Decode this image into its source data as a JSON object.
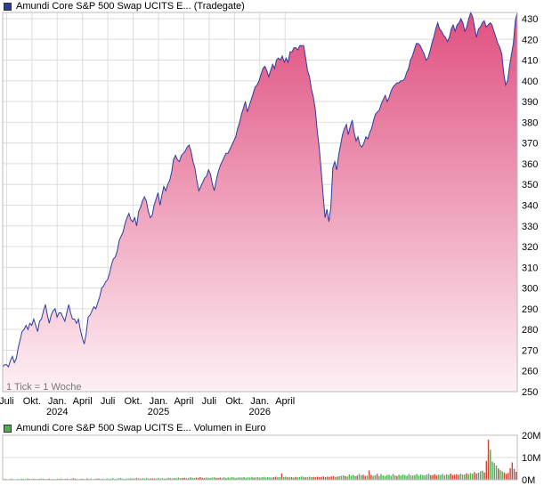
{
  "chart_data": [
    {
      "type": "area",
      "title": "Amundi Core S&P 500 Swap UCITS E... (Tradegate)",
      "note": "1 Tick = 1 Woche",
      "ylim": [
        250,
        433
      ],
      "yticks": [
        250,
        260,
        270,
        280,
        290,
        300,
        310,
        320,
        330,
        340,
        350,
        360,
        370,
        380,
        390,
        400,
        410,
        420,
        430
      ],
      "xticks": [
        {
          "label": "Juli",
          "year": ""
        },
        {
          "label": "Okt.",
          "year": ""
        },
        {
          "label": "Jan.",
          "year": "2024"
        },
        {
          "label": "April",
          "year": ""
        },
        {
          "label": "Juli",
          "year": ""
        },
        {
          "label": "Okt.",
          "year": ""
        },
        {
          "label": "Jan.",
          "year": "2025"
        },
        {
          "label": "April",
          "year": ""
        },
        {
          "label": "Juli",
          "year": ""
        },
        {
          "label": "Okt.",
          "year": ""
        },
        {
          "label": "Jan.",
          "year": "2026"
        },
        {
          "label": "April",
          "year": ""
        }
      ],
      "grid": true,
      "colors": {
        "line": "#2b3d9a",
        "fill_top": "#e05080",
        "fill_bottom": "#fdf0f5",
        "grid": "#dddddd"
      },
      "series": [
        {
          "name": "",
          "values": [
            262,
            263,
            263,
            262,
            265,
            267,
            264,
            266,
            271,
            275,
            279,
            280,
            282,
            280,
            283,
            282,
            285,
            282,
            279,
            284,
            285,
            289,
            292,
            287,
            283,
            287,
            289,
            290,
            286,
            288,
            288,
            286,
            284,
            288,
            292,
            288,
            285,
            285,
            283,
            285,
            280,
            276,
            273,
            278,
            286,
            287,
            289,
            291,
            290,
            293,
            296,
            300,
            301,
            303,
            304,
            307,
            311,
            314,
            315,
            318,
            323,
            325,
            327,
            331,
            334,
            336,
            333,
            332,
            334,
            330,
            337,
            339,
            342,
            344,
            342,
            337,
            334,
            335,
            340,
            343,
            346,
            340,
            345,
            349,
            347,
            350,
            352,
            356,
            362,
            364,
            362,
            361,
            364,
            365,
            366,
            368,
            369,
            366,
            361,
            358,
            352,
            347,
            349,
            351,
            353,
            354,
            357,
            355,
            350,
            347,
            352,
            356,
            359,
            361,
            363,
            365,
            365,
            367,
            369,
            371,
            373,
            377,
            380,
            384,
            387,
            390,
            385,
            388,
            391,
            394,
            397,
            398,
            400,
            403,
            406,
            407,
            405,
            402,
            405,
            408,
            406,
            410,
            411,
            410,
            412,
            409,
            411,
            409,
            414,
            414,
            416,
            416,
            415,
            417,
            417,
            417,
            411,
            405,
            402,
            396,
            392,
            386,
            376,
            368,
            357,
            345,
            334,
            338,
            332,
            339,
            358,
            361,
            357,
            364,
            369,
            374,
            377,
            379,
            374,
            378,
            381,
            375,
            371,
            373,
            369,
            368,
            370,
            373,
            372,
            375,
            377,
            381,
            384,
            385,
            386,
            389,
            391,
            393,
            390,
            392,
            395,
            397,
            398,
            399,
            399,
            400,
            400,
            401,
            404,
            406,
            410,
            412,
            415,
            418,
            418,
            417,
            415,
            413,
            410,
            411,
            414,
            418,
            421,
            425,
            428,
            425,
            424,
            422,
            421,
            419,
            421,
            425,
            427,
            424,
            427,
            428,
            430,
            428,
            424,
            426,
            430,
            433,
            431,
            426,
            421,
            425,
            426,
            428,
            429,
            426,
            427,
            428,
            427,
            424,
            421,
            418,
            416,
            413,
            404,
            398,
            400,
            407,
            413,
            418,
            429,
            435
          ]
        }
      ]
    },
    {
      "type": "bar",
      "title": "Amundi Core S&P 500 Swap UCITS E... Volumen in Euro",
      "ylim": [
        0,
        20
      ],
      "yticks": [
        {
          "value": 0,
          "label": "0M"
        },
        {
          "value": 10,
          "label": "10M"
        },
        {
          "value": 20,
          "label": "20M"
        }
      ],
      "colors": {
        "up": "#4caf50",
        "down": "#d0453a",
        "grid": "#dddddd"
      },
      "series": [
        {
          "name": "",
          "values": [
            0.3,
            0.4,
            0.2,
            0.3,
            0.5,
            0.3,
            0.2,
            0.4,
            0.3,
            0.5,
            0.4,
            0.3,
            0.6,
            0.4,
            0.3,
            0.5,
            0.4,
            0.3,
            0.4,
            0.6,
            0.5,
            0.3,
            0.4,
            0.5,
            0.3,
            0.4,
            0.3,
            0.5,
            0.4,
            0.6,
            0.3,
            0.4,
            0.5,
            0.3,
            0.4,
            0.7,
            0.5,
            0.4,
            0.3,
            0.5,
            0.4,
            0.3,
            0.6,
            0.4,
            0.5,
            0.3,
            0.4,
            0.6,
            0.5,
            0.4,
            0.5,
            0.3,
            0.6,
            0.4,
            0.5,
            0.7,
            0.4,
            0.5,
            0.6,
            0.8,
            0.5,
            0.4,
            0.6,
            0.5,
            0.7,
            0.6,
            0.5,
            0.8,
            0.6,
            0.5,
            0.7,
            0.6,
            0.9,
            0.5,
            0.6,
            0.7,
            0.6,
            0.5,
            0.8,
            0.6,
            0.7,
            0.5,
            0.6,
            0.9,
            0.7,
            0.6,
            0.8,
            0.7,
            1.0,
            0.7,
            0.8,
            0.9,
            0.7,
            0.8,
            1.1,
            0.9,
            0.8,
            1.0,
            0.8,
            1.2,
            0.9,
            0.8,
            1.0,
            0.9,
            0.8,
            1.0,
            1.1,
            0.9,
            0.8,
            1.0,
            0.9,
            1.1,
            0.8,
            1.0,
            0.9,
            1.2,
            1.0,
            0.9,
            1.0,
            1.1,
            1.0,
            1.2,
            0.9,
            1.1,
            1.0,
            1.3,
            1.0,
            1.1,
            1.2,
            1.0,
            1.1,
            1.3,
            1.0,
            1.2,
            1.1,
            1.0,
            1.2,
            1.4,
            1.1,
            1.2,
            2.8,
            1.2,
            1.4,
            1.1,
            1.3,
            1.2,
            1.0,
            1.3,
            1.1,
            1.2,
            1.5,
            1.3,
            1.1,
            1.2,
            1.4,
            1.2,
            1.3,
            1.1,
            1.4,
            1.2,
            1.3,
            1.5,
            1.2,
            1.4,
            1.3,
            1.5,
            1.6,
            1.2,
            1.4,
            1.6,
            1.8,
            2.0,
            1.6,
            1.5,
            2.4,
            1.8,
            2.2,
            1.6,
            1.9,
            2.6,
            2.0,
            2.3,
            1.7,
            1.9,
            4.2,
            2.2,
            1.8,
            2.0,
            2.7,
            1.7,
            2.5,
            1.9,
            1.6,
            2.1,
            2.3,
            1.8,
            2.6,
            2.0,
            1.7,
            2.2,
            1.9,
            2.4,
            2.1,
            1.8,
            2.5,
            2.0,
            1.9,
            2.2,
            2.6,
            1.8,
            2.3,
            2.1,
            1.9,
            2.4,
            2.7,
            2.0,
            2.2,
            2.5,
            1.9,
            2.3,
            2.1,
            2.6,
            2.0,
            2.4,
            2.2,
            2.8,
            2.1,
            2.3,
            2.5,
            2.2,
            2.7,
            2.4,
            2.3,
            2.9,
            2.5,
            3.0,
            2.7,
            3.5,
            2.8,
            3.2,
            3.8,
            4.1,
            3.3,
            8.5,
            18.0,
            13.5,
            8.2,
            7.5,
            6.4,
            5.1,
            4.3,
            3.8,
            3.2,
            2.7,
            3.1,
            5.2,
            7.8,
            4.9,
            3.6
          ]
        }
      ]
    }
  ]
}
